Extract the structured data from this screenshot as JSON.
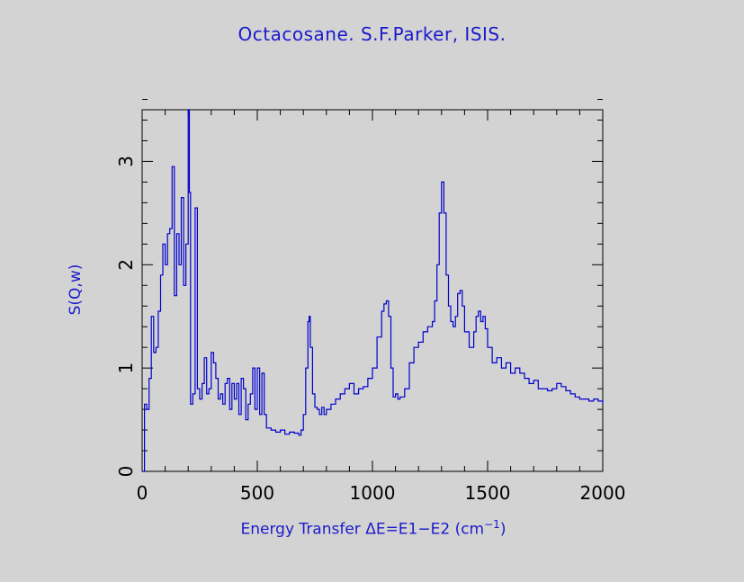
{
  "chart_data": {
    "type": "line",
    "title": "Octacosane. S.F.Parker, ISIS.",
    "xlabel": {
      "prefix": "Energy Transfer ΔE=E1−E2 (cm",
      "sup": "−1",
      "suffix": ")"
    },
    "ylabel": "S(Q,w)",
    "xlim": [
      0,
      2000
    ],
    "ylim": [
      0,
      3.5
    ],
    "xticks": [
      0,
      500,
      1000,
      1500,
      2000
    ],
    "yticks": [
      0,
      1,
      2,
      3
    ],
    "grid": false,
    "legend": "none",
    "line_color": "#0000cc",
    "series": [
      {
        "x": [
          0,
          10,
          20,
          30,
          40,
          50,
          60,
          70,
          80,
          90,
          100,
          110,
          120,
          130,
          140,
          150,
          160,
          170,
          180,
          190,
          200,
          205,
          210,
          220,
          230,
          240,
          250,
          260,
          270,
          280,
          290,
          300,
          310,
          320,
          330,
          340,
          350,
          360,
          370,
          380,
          390,
          400,
          410,
          420,
          430,
          440,
          450,
          460,
          470,
          480,
          490,
          500,
          510,
          520,
          530,
          540,
          560,
          580,
          600,
          620,
          640,
          660,
          680,
          690,
          700,
          710,
          720,
          725,
          730,
          740,
          750,
          760,
          770,
          780,
          790,
          800,
          820,
          840,
          860,
          880,
          900,
          920,
          940,
          960,
          980,
          1000,
          1020,
          1040,
          1050,
          1060,
          1070,
          1080,
          1090,
          1100,
          1110,
          1120,
          1140,
          1160,
          1180,
          1200,
          1220,
          1240,
          1260,
          1270,
          1280,
          1290,
          1300,
          1310,
          1320,
          1330,
          1340,
          1350,
          1360,
          1370,
          1380,
          1390,
          1400,
          1420,
          1440,
          1450,
          1460,
          1470,
          1480,
          1490,
          1500,
          1520,
          1540,
          1560,
          1580,
          1600,
          1620,
          1640,
          1660,
          1680,
          1700,
          1720,
          1740,
          1760,
          1780,
          1800,
          1820,
          1840,
          1860,
          1880,
          1900,
          1920,
          1940,
          1960,
          1980,
          2000
        ],
        "y": [
          0.0,
          0.65,
          0.6,
          0.9,
          1.5,
          1.15,
          1.2,
          1.55,
          1.9,
          2.2,
          2.0,
          2.3,
          2.35,
          2.95,
          1.7,
          2.3,
          2.0,
          2.65,
          1.8,
          2.2,
          3.5,
          2.7,
          0.65,
          0.75,
          2.55,
          0.8,
          0.7,
          0.85,
          1.1,
          0.75,
          0.8,
          1.15,
          1.05,
          0.9,
          0.7,
          0.75,
          0.65,
          0.85,
          0.9,
          0.6,
          0.85,
          0.7,
          0.85,
          0.55,
          0.9,
          0.8,
          0.5,
          0.65,
          0.75,
          1.0,
          0.6,
          1.0,
          0.55,
          0.95,
          0.55,
          0.42,
          0.4,
          0.38,
          0.4,
          0.36,
          0.38,
          0.37,
          0.35,
          0.4,
          0.55,
          1.0,
          1.45,
          1.5,
          1.2,
          0.75,
          0.62,
          0.6,
          0.55,
          0.62,
          0.55,
          0.6,
          0.65,
          0.7,
          0.75,
          0.8,
          0.85,
          0.75,
          0.8,
          0.82,
          0.9,
          1.0,
          1.3,
          1.55,
          1.62,
          1.65,
          1.5,
          1.0,
          0.72,
          0.75,
          0.7,
          0.72,
          0.8,
          1.05,
          1.2,
          1.25,
          1.35,
          1.4,
          1.45,
          1.65,
          2.0,
          2.5,
          2.8,
          2.5,
          1.9,
          1.6,
          1.45,
          1.4,
          1.5,
          1.72,
          1.75,
          1.6,
          1.35,
          1.2,
          1.35,
          1.5,
          1.55,
          1.45,
          1.5,
          1.38,
          1.2,
          1.05,
          1.1,
          1.0,
          1.05,
          0.95,
          1.0,
          0.95,
          0.9,
          0.85,
          0.88,
          0.8,
          0.8,
          0.78,
          0.8,
          0.85,
          0.82,
          0.78,
          0.75,
          0.72,
          0.7,
          0.7,
          0.68,
          0.7,
          0.68,
          0.65
        ]
      }
    ]
  }
}
